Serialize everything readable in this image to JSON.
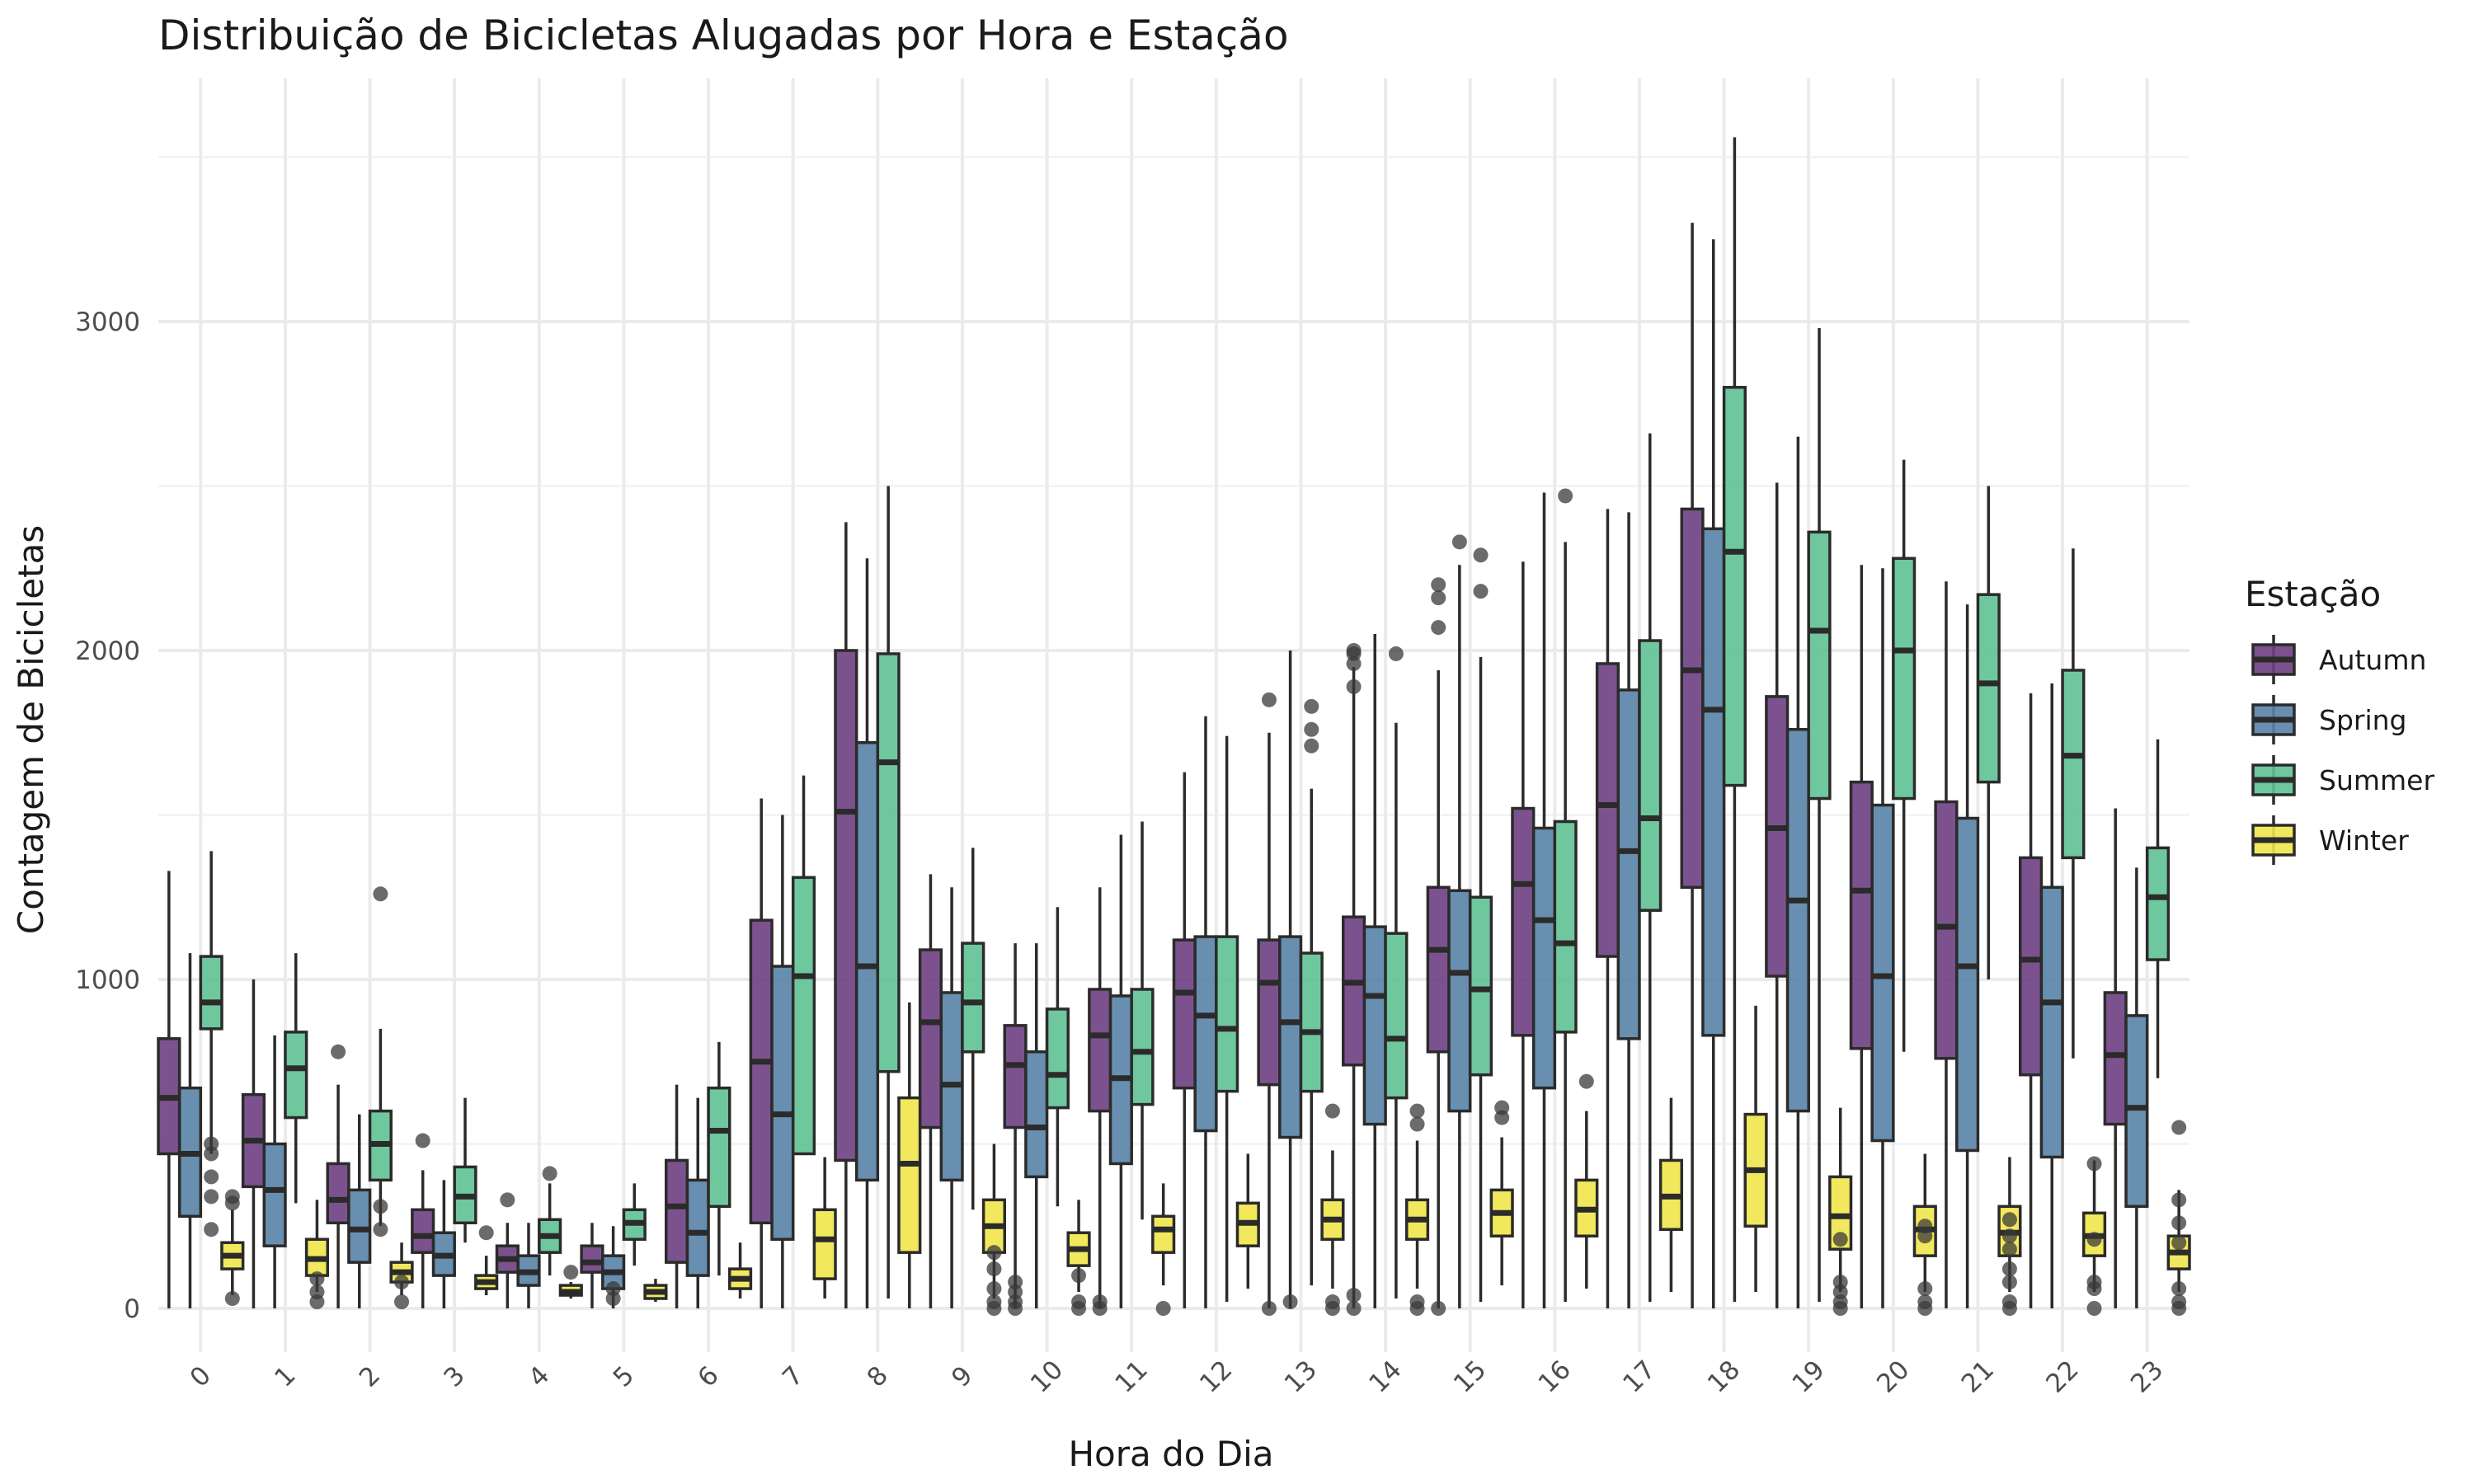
{
  "chart_data": {
    "type": "boxplot",
    "title": "Distribuição de Bicicletas Alugadas por Hora e Estação",
    "xlabel": "Hora do Dia",
    "ylabel": "Contagem de Bicicletas",
    "ylim": [
      -200,
      3600
    ],
    "yticks": [
      0,
      1000,
      2000,
      3000
    ],
    "grid": true,
    "legend_title": "Estação",
    "legend_position": "right",
    "categories": [
      "0",
      "1",
      "2",
      "3",
      "4",
      "5",
      "6",
      "7",
      "8",
      "9",
      "10",
      "11",
      "12",
      "13",
      "14",
      "15",
      "16",
      "17",
      "18",
      "19",
      "20",
      "21",
      "22",
      "23"
    ],
    "series": [
      {
        "name": "Autumn",
        "color": "#6e3f82",
        "boxes": [
          {
            "wlo": 0,
            "q1": 470,
            "med": 640,
            "q3": 820,
            "whi": 1330,
            "out": []
          },
          {
            "wlo": 0,
            "q1": 370,
            "med": 510,
            "q3": 650,
            "whi": 1000,
            "out": []
          },
          {
            "wlo": 0,
            "q1": 260,
            "med": 330,
            "q3": 440,
            "whi": 680,
            "out": [
              780
            ]
          },
          {
            "wlo": 0,
            "q1": 170,
            "med": 220,
            "q3": 300,
            "whi": 420,
            "out": [
              510
            ]
          },
          {
            "wlo": 0,
            "q1": 110,
            "med": 150,
            "q3": 190,
            "whi": 260,
            "out": [
              330
            ]
          },
          {
            "wlo": 0,
            "q1": 110,
            "med": 140,
            "q3": 190,
            "whi": 260,
            "out": []
          },
          {
            "wlo": 0,
            "q1": 140,
            "med": 310,
            "q3": 450,
            "whi": 680,
            "out": []
          },
          {
            "wlo": 0,
            "q1": 260,
            "med": 750,
            "q3": 1180,
            "whi": 1550,
            "out": []
          },
          {
            "wlo": 0,
            "q1": 450,
            "med": 1510,
            "q3": 2000,
            "whi": 2390,
            "out": []
          },
          {
            "wlo": 0,
            "q1": 550,
            "med": 870,
            "q3": 1090,
            "whi": 1320,
            "out": []
          },
          {
            "wlo": 0,
            "q1": 550,
            "med": 740,
            "q3": 860,
            "whi": 1110,
            "out": [
              0,
              20,
              50,
              80
            ]
          },
          {
            "wlo": 0,
            "q1": 600,
            "med": 830,
            "q3": 970,
            "whi": 1280,
            "out": [
              0,
              20
            ]
          },
          {
            "wlo": 0,
            "q1": 670,
            "med": 960,
            "q3": 1120,
            "whi": 1630,
            "out": []
          },
          {
            "wlo": 0,
            "q1": 680,
            "med": 990,
            "q3": 1120,
            "whi": 1750,
            "out": [
              0,
              1850
            ]
          },
          {
            "wlo": 0,
            "q1": 740,
            "med": 990,
            "q3": 1190,
            "whi": 1950,
            "out": [
              0,
              40,
              1890,
              1960,
              1990,
              2000
            ]
          },
          {
            "wlo": 0,
            "q1": 780,
            "med": 1090,
            "q3": 1280,
            "whi": 1940,
            "out": [
              0,
              2070,
              2160,
              2200
            ]
          },
          {
            "wlo": 0,
            "q1": 830,
            "med": 1290,
            "q3": 1520,
            "whi": 2270,
            "out": []
          },
          {
            "wlo": 0,
            "q1": 1070,
            "med": 1530,
            "q3": 1960,
            "whi": 2430,
            "out": []
          },
          {
            "wlo": 0,
            "q1": 1280,
            "med": 1940,
            "q3": 2430,
            "whi": 3300,
            "out": []
          },
          {
            "wlo": 0,
            "q1": 1010,
            "med": 1460,
            "q3": 1860,
            "whi": 2510,
            "out": []
          },
          {
            "wlo": 0,
            "q1": 790,
            "med": 1270,
            "q3": 1600,
            "whi": 2260,
            "out": []
          },
          {
            "wlo": 0,
            "q1": 760,
            "med": 1160,
            "q3": 1540,
            "whi": 2210,
            "out": []
          },
          {
            "wlo": 0,
            "q1": 710,
            "med": 1060,
            "q3": 1370,
            "whi": 1870,
            "out": []
          },
          {
            "wlo": 0,
            "q1": 560,
            "med": 770,
            "q3": 960,
            "whi": 1520,
            "out": []
          }
        ]
      },
      {
        "name": "Spring",
        "color": "#5883a6",
        "boxes": [
          {
            "wlo": 0,
            "q1": 280,
            "med": 470,
            "q3": 670,
            "whi": 1080,
            "out": []
          },
          {
            "wlo": 0,
            "q1": 190,
            "med": 360,
            "q3": 500,
            "whi": 830,
            "out": []
          },
          {
            "wlo": 0,
            "q1": 140,
            "med": 240,
            "q3": 360,
            "whi": 590,
            "out": []
          },
          {
            "wlo": 0,
            "q1": 100,
            "med": 160,
            "q3": 230,
            "whi": 390,
            "out": []
          },
          {
            "wlo": 0,
            "q1": 70,
            "med": 110,
            "q3": 160,
            "whi": 260,
            "out": []
          },
          {
            "wlo": 0,
            "q1": 60,
            "med": 110,
            "q3": 160,
            "whi": 250,
            "out": [
              30,
              60
            ]
          },
          {
            "wlo": 0,
            "q1": 100,
            "med": 230,
            "q3": 390,
            "whi": 640,
            "out": []
          },
          {
            "wlo": 0,
            "q1": 210,
            "med": 590,
            "q3": 1040,
            "whi": 1500,
            "out": []
          },
          {
            "wlo": 0,
            "q1": 390,
            "med": 1040,
            "q3": 1720,
            "whi": 2280,
            "out": []
          },
          {
            "wlo": 0,
            "q1": 390,
            "med": 680,
            "q3": 960,
            "whi": 1280,
            "out": []
          },
          {
            "wlo": 0,
            "q1": 400,
            "med": 550,
            "q3": 780,
            "whi": 1110,
            "out": []
          },
          {
            "wlo": 0,
            "q1": 440,
            "med": 700,
            "q3": 950,
            "whi": 1440,
            "out": []
          },
          {
            "wlo": 0,
            "q1": 540,
            "med": 890,
            "q3": 1130,
            "whi": 1800,
            "out": []
          },
          {
            "wlo": 0,
            "q1": 520,
            "med": 870,
            "q3": 1130,
            "whi": 2000,
            "out": [
              20
            ]
          },
          {
            "wlo": 0,
            "q1": 560,
            "med": 950,
            "q3": 1160,
            "whi": 2050,
            "out": []
          },
          {
            "wlo": 0,
            "q1": 600,
            "med": 1020,
            "q3": 1270,
            "whi": 2260,
            "out": [
              2330
            ]
          },
          {
            "wlo": 0,
            "q1": 670,
            "med": 1180,
            "q3": 1460,
            "whi": 2480,
            "out": []
          },
          {
            "wlo": 0,
            "q1": 820,
            "med": 1390,
            "q3": 1880,
            "whi": 2420,
            "out": []
          },
          {
            "wlo": 0,
            "q1": 830,
            "med": 1820,
            "q3": 2370,
            "whi": 3250,
            "out": []
          },
          {
            "wlo": 0,
            "q1": 600,
            "med": 1240,
            "q3": 1760,
            "whi": 2650,
            "out": []
          },
          {
            "wlo": 0,
            "q1": 510,
            "med": 1010,
            "q3": 1530,
            "whi": 2250,
            "out": []
          },
          {
            "wlo": 0,
            "q1": 480,
            "med": 1040,
            "q3": 1490,
            "whi": 2140,
            "out": []
          },
          {
            "wlo": 0,
            "q1": 460,
            "med": 930,
            "q3": 1280,
            "whi": 1900,
            "out": []
          },
          {
            "wlo": 0,
            "q1": 310,
            "med": 610,
            "q3": 890,
            "whi": 1340,
            "out": []
          }
        ]
      },
      {
        "name": "Summer",
        "color": "#5fc194",
        "boxes": [
          {
            "wlo": 470,
            "q1": 850,
            "med": 930,
            "q3": 1070,
            "whi": 1390,
            "out": [
              240,
              340,
              400,
              470,
              500
            ]
          },
          {
            "wlo": 320,
            "q1": 580,
            "med": 730,
            "q3": 840,
            "whi": 1080,
            "out": []
          },
          {
            "wlo": 250,
            "q1": 390,
            "med": 500,
            "q3": 600,
            "whi": 850,
            "out": [
              240,
              310,
              1260
            ]
          },
          {
            "wlo": 200,
            "q1": 260,
            "med": 340,
            "q3": 430,
            "whi": 640,
            "out": []
          },
          {
            "wlo": 100,
            "q1": 170,
            "med": 220,
            "q3": 270,
            "whi": 380,
            "out": [
              410
            ]
          },
          {
            "wlo": 130,
            "q1": 210,
            "med": 260,
            "q3": 300,
            "whi": 380,
            "out": []
          },
          {
            "wlo": 100,
            "q1": 310,
            "med": 540,
            "q3": 670,
            "whi": 810,
            "out": []
          },
          {
            "wlo": 470,
            "q1": 470,
            "med": 1010,
            "q3": 1310,
            "whi": 1620,
            "out": []
          },
          {
            "wlo": 30,
            "q1": 720,
            "med": 1660,
            "q3": 1990,
            "whi": 2500,
            "out": []
          },
          {
            "wlo": 300,
            "q1": 780,
            "med": 930,
            "q3": 1110,
            "whi": 1400,
            "out": []
          },
          {
            "wlo": 310,
            "q1": 610,
            "med": 710,
            "q3": 910,
            "whi": 1220,
            "out": []
          },
          {
            "wlo": 270,
            "q1": 620,
            "med": 780,
            "q3": 970,
            "whi": 1480,
            "out": []
          },
          {
            "wlo": 20,
            "q1": 660,
            "med": 850,
            "q3": 1130,
            "whi": 1740,
            "out": []
          },
          {
            "wlo": 70,
            "q1": 660,
            "med": 840,
            "q3": 1080,
            "whi": 1580,
            "out": [
              1710,
              1760,
              1830
            ]
          },
          {
            "wlo": 30,
            "q1": 640,
            "med": 820,
            "q3": 1140,
            "whi": 1780,
            "out": [
              1990
            ]
          },
          {
            "wlo": 20,
            "q1": 710,
            "med": 970,
            "q3": 1250,
            "whi": 1980,
            "out": [
              2180,
              2290
            ]
          },
          {
            "wlo": 20,
            "q1": 840,
            "med": 1110,
            "q3": 1480,
            "whi": 2330,
            "out": [
              2470
            ]
          },
          {
            "wlo": 20,
            "q1": 1210,
            "med": 1490,
            "q3": 2030,
            "whi": 2660,
            "out": []
          },
          {
            "wlo": 20,
            "q1": 1590,
            "med": 2300,
            "q3": 2800,
            "whi": 3560,
            "out": []
          },
          {
            "wlo": 20,
            "q1": 1550,
            "med": 2060,
            "q3": 2360,
            "whi": 2980,
            "out": []
          },
          {
            "wlo": 780,
            "q1": 1550,
            "med": 2000,
            "q3": 2280,
            "whi": 2580,
            "out": []
          },
          {
            "wlo": 1000,
            "q1": 1600,
            "med": 1900,
            "q3": 2170,
            "whi": 2500,
            "out": []
          },
          {
            "wlo": 760,
            "q1": 1370,
            "med": 1680,
            "q3": 1940,
            "whi": 2310,
            "out": []
          },
          {
            "wlo": 700,
            "q1": 1060,
            "med": 1250,
            "q3": 1400,
            "whi": 1730,
            "out": []
          }
        ]
      },
      {
        "name": "Winter",
        "color": "#f1e54b",
        "boxes": [
          {
            "wlo": 40,
            "q1": 120,
            "med": 160,
            "q3": 200,
            "whi": 300,
            "out": [
              30,
              320,
              340
            ]
          },
          {
            "wlo": 50,
            "q1": 100,
            "med": 150,
            "q3": 210,
            "whi": 330,
            "out": [
              20,
              50,
              90
            ]
          },
          {
            "wlo": 40,
            "q1": 80,
            "med": 110,
            "q3": 140,
            "whi": 200,
            "out": [
              20,
              80
            ]
          },
          {
            "wlo": 40,
            "q1": 60,
            "med": 80,
            "q3": 100,
            "whi": 160,
            "out": [
              230
            ]
          },
          {
            "wlo": 30,
            "q1": 40,
            "med": 50,
            "q3": 70,
            "whi": 80,
            "out": [
              110
            ]
          },
          {
            "wlo": 20,
            "q1": 30,
            "med": 50,
            "q3": 70,
            "whi": 90,
            "out": []
          },
          {
            "wlo": 30,
            "q1": 60,
            "med": 90,
            "q3": 120,
            "whi": 200,
            "out": []
          },
          {
            "wlo": 30,
            "q1": 90,
            "med": 210,
            "q3": 300,
            "whi": 460,
            "out": []
          },
          {
            "wlo": 0,
            "q1": 170,
            "med": 440,
            "q3": 640,
            "whi": 930,
            "out": []
          },
          {
            "wlo": 30,
            "q1": 170,
            "med": 250,
            "q3": 330,
            "whi": 500,
            "out": [
              0,
              20,
              60,
              120,
              170
            ]
          },
          {
            "wlo": 50,
            "q1": 130,
            "med": 180,
            "q3": 230,
            "whi": 330,
            "out": [
              0,
              20,
              100
            ]
          },
          {
            "wlo": 70,
            "q1": 170,
            "med": 240,
            "q3": 280,
            "whi": 380,
            "out": [
              0
            ]
          },
          {
            "wlo": 60,
            "q1": 190,
            "med": 260,
            "q3": 320,
            "whi": 470,
            "out": []
          },
          {
            "wlo": 60,
            "q1": 210,
            "med": 270,
            "q3": 330,
            "whi": 480,
            "out": [
              0,
              20,
              600
            ]
          },
          {
            "wlo": 60,
            "q1": 210,
            "med": 270,
            "q3": 330,
            "whi": 510,
            "out": [
              0,
              20,
              560,
              600
            ]
          },
          {
            "wlo": 70,
            "q1": 220,
            "med": 290,
            "q3": 360,
            "whi": 520,
            "out": [
              580,
              610
            ]
          },
          {
            "wlo": 60,
            "q1": 220,
            "med": 300,
            "q3": 390,
            "whi": 600,
            "out": [
              690
            ]
          },
          {
            "wlo": 50,
            "q1": 240,
            "med": 340,
            "q3": 450,
            "whi": 640,
            "out": []
          },
          {
            "wlo": 50,
            "q1": 250,
            "med": 420,
            "q3": 590,
            "whi": 920,
            "out": []
          },
          {
            "wlo": 50,
            "q1": 180,
            "med": 280,
            "q3": 400,
            "whi": 610,
            "out": [
              0,
              20,
              50,
              80,
              210
            ]
          },
          {
            "wlo": 50,
            "q1": 160,
            "med": 240,
            "q3": 310,
            "whi": 470,
            "out": [
              0,
              20,
              60,
              220,
              250
            ]
          },
          {
            "wlo": 50,
            "q1": 160,
            "med": 230,
            "q3": 310,
            "whi": 460,
            "out": [
              0,
              20,
              80,
              120,
              180,
              220,
              270
            ]
          },
          {
            "wlo": 50,
            "q1": 160,
            "med": 220,
            "q3": 290,
            "whi": 450,
            "out": [
              0,
              60,
              80,
              210,
              440
            ]
          },
          {
            "wlo": 50,
            "q1": 120,
            "med": 170,
            "q3": 220,
            "whi": 360,
            "out": [
              0,
              20,
              60,
              200,
              260,
              330,
              550
            ]
          }
        ]
      }
    ]
  }
}
